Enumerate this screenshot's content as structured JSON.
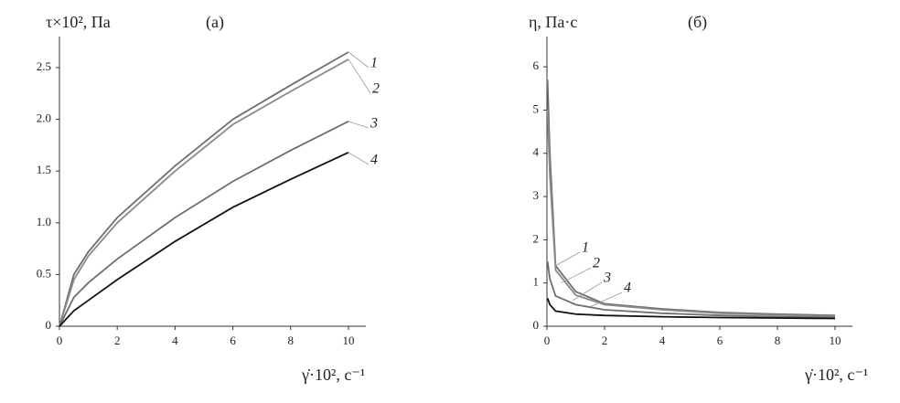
{
  "chart_data": [
    {
      "type": "line",
      "panel": "(а)",
      "y_label": "τ×10², Па",
      "x_label": "γ̇·10², с⁻¹",
      "xlim": [
        0,
        10.35
      ],
      "ylim": [
        0,
        2.8
      ],
      "xticks": [
        0,
        2,
        4,
        6,
        8,
        10
      ],
      "yticks": [
        0,
        0.5,
        {
          "value": 1,
          "label": "1.0"
        },
        1.5,
        {
          "value": 2,
          "label": "2.0"
        },
        2.5
      ],
      "x": [
        0,
        0.5,
        1,
        2,
        4,
        6,
        8,
        10
      ],
      "series": [
        {
          "name": "1",
          "color": "#6e6e6e",
          "values": [
            0,
            0.5,
            0.72,
            1.05,
            1.55,
            2.0,
            2.33,
            2.65
          ]
        },
        {
          "name": "2",
          "color": "#8a8a8a",
          "values": [
            0,
            0.45,
            0.68,
            1.0,
            1.5,
            1.95,
            2.27,
            2.58
          ]
        },
        {
          "name": "3",
          "color": "#6e6e6e",
          "values": [
            0,
            0.28,
            0.42,
            0.65,
            1.05,
            1.4,
            1.7,
            1.98
          ]
        },
        {
          "name": "4",
          "color": "#111111",
          "values": [
            0,
            0.15,
            0.25,
            0.45,
            0.82,
            1.15,
            1.42,
            1.68
          ]
        }
      ]
    },
    {
      "type": "line",
      "panel": "(б)",
      "y_label": "η, Па·с",
      "x_label": "γ̇·10², с⁻¹",
      "xlim": [
        0,
        10.35
      ],
      "ylim": [
        0,
        6.7
      ],
      "xticks": [
        0,
        2,
        4,
        6,
        8,
        10
      ],
      "yticks": [
        0,
        1,
        2,
        3,
        4,
        5,
        6
      ],
      "x": [
        0.02,
        0.1,
        0.3,
        1,
        2,
        4,
        6,
        8,
        10
      ],
      "series": [
        {
          "name": "1",
          "color": "#6e6e6e",
          "values": [
            5.7,
            4.0,
            1.4,
            0.8,
            0.52,
            0.4,
            0.32,
            0.28,
            0.25
          ]
        },
        {
          "name": "2",
          "color": "#8a8a8a",
          "values": [
            5.0,
            3.5,
            1.3,
            0.72,
            0.5,
            0.38,
            0.3,
            0.26,
            0.23
          ]
        },
        {
          "name": "3",
          "color": "#6e6e6e",
          "values": [
            1.5,
            1.1,
            0.7,
            0.5,
            0.38,
            0.3,
            0.25,
            0.22,
            0.2
          ]
        },
        {
          "name": "4",
          "color": "#111111",
          "values": [
            0.65,
            0.5,
            0.35,
            0.28,
            0.25,
            0.22,
            0.2,
            0.19,
            0.18
          ]
        }
      ]
    }
  ]
}
